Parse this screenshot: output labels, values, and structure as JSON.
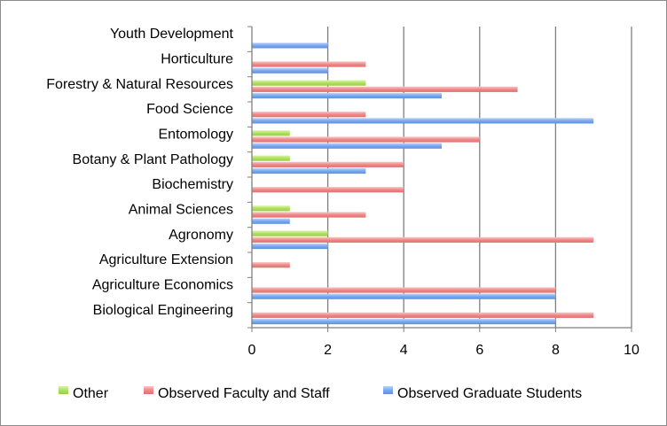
{
  "chart_data": {
    "type": "bar",
    "orientation": "horizontal",
    "categories": [
      "Youth Development",
      "Horticulture",
      "Forestry & Natural Resources",
      "Food Science",
      "Entomology",
      "Botany & Plant Pathology",
      "Biochemistry",
      "Animal Sciences",
      "Agronomy",
      "Agriculture Extension",
      "Agriculture Economics",
      "Biological Engineering"
    ],
    "series": [
      {
        "name": "Other",
        "color": "#b0e060",
        "values": [
          0,
          0,
          3,
          0,
          1,
          1,
          0,
          1,
          2,
          0,
          0,
          0
        ]
      },
      {
        "name": "Observed Faculty and Staff",
        "color": "#f08888",
        "values": [
          0,
          3,
          7,
          3,
          6,
          4,
          4,
          3,
          9,
          1,
          8,
          9
        ]
      },
      {
        "name": "Observed Graduate Students",
        "color": "#7aa8f0",
        "values": [
          2,
          2,
          5,
          9,
          5,
          3,
          0,
          1,
          2,
          0,
          8,
          8
        ]
      }
    ],
    "xlim": [
      0,
      10
    ],
    "xticks": [
      "0",
      "2",
      "4",
      "6",
      "8",
      "10"
    ],
    "grid": true,
    "legend_position": "bottom",
    "title": "",
    "xlabel": "",
    "ylabel": ""
  }
}
